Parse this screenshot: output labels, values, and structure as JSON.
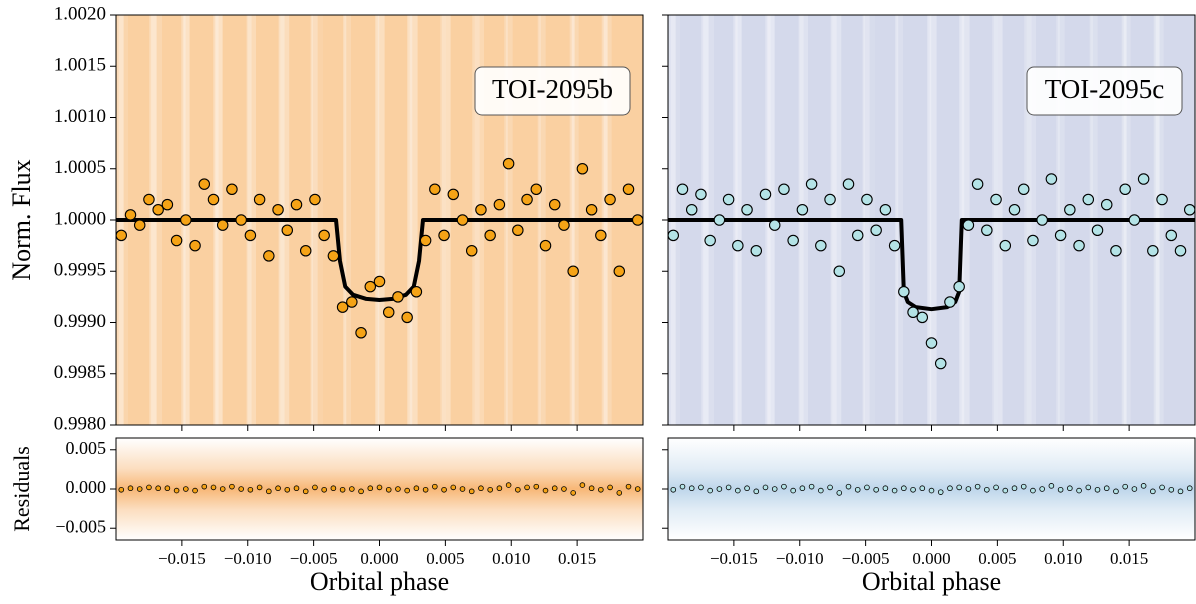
{
  "chart_data": [
    {
      "type": "scatter",
      "ylabel": "Norm. Flux",
      "annotation": "TOI-2095b",
      "band_color": "#f9c48a",
      "xlim": [
        -0.02,
        0.02
      ],
      "xticks": [
        -0.015,
        -0.01,
        -0.005,
        0,
        0.005,
        0.01,
        0.015
      ],
      "show_xtick_labels": false,
      "ylim": [
        0.998,
        1.002
      ],
      "yticks": [
        {
          "value": 0.998,
          "label": "0.9980"
        },
        {
          "value": 0.9985,
          "label": "0.9985"
        },
        {
          "value": 0.999,
          "label": "0.9990"
        },
        {
          "value": 0.9995,
          "label": "0.9995"
        },
        {
          "value": 1.0,
          "label": "1.0000"
        },
        {
          "value": 1.0005,
          "label": "1.0005"
        },
        {
          "value": 1.001,
          "label": "1.0010"
        },
        {
          "value": 1.0015,
          "label": "1.0015"
        },
        {
          "value": 1.002,
          "label": "1.0020"
        }
      ],
      "show_ytick_labels": true,
      "series": [
        {
          "style": "points",
          "color": "#f5a316",
          "x": [
            -0.0196,
            -0.0189,
            -0.0182,
            -0.0175,
            -0.0168,
            -0.0161,
            -0.0154,
            -0.0147,
            -0.014,
            -0.0133,
            -0.0126,
            -0.0119,
            -0.0112,
            -0.0105,
            -0.0098,
            -0.0091,
            -0.0084,
            -0.0077,
            -0.007,
            -0.0063,
            -0.0056,
            -0.0049,
            -0.0042,
            -0.0035,
            -0.0028,
            -0.0021,
            -0.0014,
            -0.0007,
            0,
            0.0007,
            0.0014,
            0.0021,
            0.0028,
            0.0035,
            0.0042,
            0.0049,
            0.0056,
            0.0063,
            0.007,
            0.0077,
            0.0084,
            0.0091,
            0.0098,
            0.0105,
            0.0112,
            0.0119,
            0.0126,
            0.0133,
            0.014,
            0.0147,
            0.0154,
            0.0161,
            0.0168,
            0.0175,
            0.0182,
            0.0189,
            0.0196
          ],
          "values": [
            0.99985,
            1.00005,
            0.99995,
            1.0002,
            1.0001,
            1.00015,
            0.9998,
            1.0,
            0.99975,
            1.00035,
            1.0002,
            0.99995,
            1.0003,
            1.0,
            0.99985,
            1.0002,
            0.99965,
            1.0001,
            0.9999,
            1.00015,
            0.9997,
            1.0002,
            0.99985,
            0.99965,
            0.99915,
            0.9992,
            0.9989,
            0.99935,
            0.9994,
            0.9991,
            0.99925,
            0.99905,
            0.9993,
            0.9998,
            1.0003,
            0.99985,
            1.00025,
            1.0,
            0.9997,
            1.0001,
            0.99985,
            1.00015,
            1.00055,
            0.9999,
            1.0002,
            1.0003,
            0.99975,
            1.00015,
            0.99995,
            0.9995,
            1.0005,
            1.0001,
            0.99985,
            1.0002,
            0.9995,
            1.0003,
            1.0
          ]
        },
        {
          "style": "line",
          "color": "#000000",
          "x": [
            -0.02,
            -0.0033,
            -0.003,
            -0.0026,
            -0.002,
            -0.001,
            0,
            0.001,
            0.002,
            0.0026,
            0.003,
            0.0033,
            0.02
          ],
          "values": [
            1.0,
            1.0,
            0.9996,
            0.99935,
            0.99927,
            0.99923,
            0.99922,
            0.99923,
            0.99927,
            0.99935,
            0.9996,
            1.0,
            1.0
          ]
        }
      ]
    },
    {
      "type": "scatter",
      "ylabel": "Residuals",
      "xlabel": "Orbital phase",
      "band_color": "#f5a04a",
      "xlim": [
        -0.02,
        0.02
      ],
      "xticks": [
        {
          "value": -0.015,
          "label": "−0.015"
        },
        {
          "value": -0.01,
          "label": "−0.010"
        },
        {
          "value": -0.005,
          "label": "−0.005"
        },
        {
          "value": 0,
          "label": "0.000"
        },
        0.005,
        {
          "value": 0.01,
          "label": "0.010"
        },
        0.015
      ],
      "show_xtick_labels": true,
      "ylim": [
        -0.0065,
        0.0065
      ],
      "yticks": [
        {
          "value": -0.005,
          "label": "−0.005"
        },
        {
          "value": 0,
          "label": "0.000"
        },
        0.005
      ],
      "show_ytick_labels": true,
      "series": [
        {
          "style": "points",
          "color": "#f5a316",
          "x": [
            -0.0196,
            -0.0189,
            -0.0182,
            -0.0175,
            -0.0168,
            -0.0161,
            -0.0154,
            -0.0147,
            -0.014,
            -0.0133,
            -0.0126,
            -0.0119,
            -0.0112,
            -0.0105,
            -0.0098,
            -0.0091,
            -0.0084,
            -0.0077,
            -0.007,
            -0.0063,
            -0.0056,
            -0.0049,
            -0.0042,
            -0.0035,
            -0.0028,
            -0.0021,
            -0.0014,
            -0.0007,
            0,
            0.0007,
            0.0014,
            0.0021,
            0.0028,
            0.0035,
            0.0042,
            0.0049,
            0.0056,
            0.0063,
            0.007,
            0.0077,
            0.0084,
            0.0091,
            0.0098,
            0.0105,
            0.0112,
            0.0119,
            0.0126,
            0.0133,
            0.014,
            0.0147,
            0.0154,
            0.0161,
            0.0168,
            0.0175,
            0.0182,
            0.0189,
            0.0196
          ],
          "values": [
            -0.0001,
            0.0001,
            0.0,
            0.0002,
            0.0001,
            0.0001,
            -0.0002,
            0.0,
            -0.0002,
            0.0003,
            0.0002,
            0.0,
            0.0003,
            0.0,
            -0.0001,
            0.0002,
            -0.0003,
            0.0001,
            -0.0001,
            0.0001,
            -0.0003,
            0.0002,
            -0.0001,
            0.0001,
            -0.0001,
            0.0,
            -0.0003,
            0.0001,
            0.0002,
            -0.0001,
            0.0,
            -0.0002,
            0.0001,
            -0.0001,
            0.0003,
            -0.0001,
            0.0002,
            0.0,
            -0.0003,
            0.0001,
            -0.0001,
            0.0001,
            0.0005,
            -0.0001,
            0.0002,
            0.0003,
            -0.0002,
            0.0001,
            0.0,
            -0.0005,
            0.0005,
            0.0001,
            -0.0001,
            0.0002,
            -0.0005,
            0.0003,
            0.0
          ]
        }
      ]
    },
    {
      "type": "scatter",
      "annotation": "TOI-2095c",
      "band_color": "#c9cfe6",
      "xlim": [
        -0.02,
        0.02
      ],
      "xticks": [
        -0.015,
        -0.01,
        -0.005,
        0,
        0.005,
        0.01,
        0.015
      ],
      "show_xtick_labels": false,
      "ylim": [
        0.998,
        1.002
      ],
      "yticks": [
        0.998,
        0.9985,
        0.999,
        0.9995,
        1.0,
        1.0005,
        1.001,
        1.0015,
        1.002
      ],
      "show_ytick_labels": false,
      "series": [
        {
          "style": "points",
          "color": "#b4e3e6",
          "x": [
            -0.0196,
            -0.0189,
            -0.0182,
            -0.0175,
            -0.0168,
            -0.0161,
            -0.0154,
            -0.0147,
            -0.014,
            -0.0133,
            -0.0126,
            -0.0119,
            -0.0112,
            -0.0105,
            -0.0098,
            -0.0091,
            -0.0084,
            -0.0077,
            -0.007,
            -0.0063,
            -0.0056,
            -0.0049,
            -0.0042,
            -0.0035,
            -0.0028,
            -0.0021,
            -0.0014,
            -0.0007,
            0,
            0.0007,
            0.0014,
            0.0021,
            0.0028,
            0.0035,
            0.0042,
            0.0049,
            0.0056,
            0.0063,
            0.007,
            0.0077,
            0.0084,
            0.0091,
            0.0098,
            0.0105,
            0.0112,
            0.0119,
            0.0126,
            0.0133,
            0.014,
            0.0147,
            0.0154,
            0.0161,
            0.0168,
            0.0175,
            0.0182,
            0.0189,
            0.0196
          ],
          "values": [
            0.99985,
            1.0003,
            1.0001,
            1.00025,
            0.9998,
            1.0,
            1.0002,
            0.99975,
            1.0001,
            0.9997,
            1.00025,
            0.99995,
            1.0003,
            0.9998,
            1.0001,
            1.00035,
            0.99975,
            1.0002,
            0.9995,
            1.00035,
            0.99985,
            1.0002,
            0.9999,
            1.0001,
            0.99975,
            0.9993,
            0.9991,
            0.99905,
            0.9988,
            0.9986,
            0.9992,
            0.99935,
            0.99995,
            1.00035,
            0.9999,
            1.0002,
            0.99975,
            1.0001,
            1.0003,
            0.9998,
            1.0,
            1.0004,
            0.99985,
            1.0001,
            0.99975,
            1.0002,
            0.9999,
            1.00015,
            0.9997,
            1.0003,
            1.0,
            1.0004,
            0.9997,
            1.0002,
            0.99985,
            0.9997,
            1.0001
          ]
        },
        {
          "style": "line",
          "color": "#000000",
          "x": [
            -0.02,
            -0.0023,
            -0.0021,
            -0.0018,
            -0.0012,
            0,
            0.0012,
            0.0018,
            0.0021,
            0.0023,
            0.02
          ],
          "values": [
            1.0,
            1.0,
            0.9993,
            0.9992,
            0.99915,
            0.99913,
            0.99915,
            0.9992,
            0.9993,
            1.0,
            1.0
          ]
        }
      ]
    },
    {
      "type": "scatter",
      "xlabel": "Orbital phase",
      "band_color": "#a9c9e4",
      "xlim": [
        -0.02,
        0.02
      ],
      "xticks": [
        {
          "value": -0.015,
          "label": "−0.015"
        },
        {
          "value": -0.01,
          "label": "−0.010"
        },
        {
          "value": -0.005,
          "label": "−0.005"
        },
        {
          "value": 0,
          "label": "0.000"
        },
        0.005,
        {
          "value": 0.01,
          "label": "0.010"
        },
        0.015
      ],
      "show_xtick_labels": true,
      "ylim": [
        -0.0065,
        0.0065
      ],
      "yticks": [
        -0.005,
        0,
        0.005
      ],
      "show_ytick_labels": false,
      "series": [
        {
          "style": "points",
          "color": "#b4e3e6",
          "x": [
            -0.0196,
            -0.0189,
            -0.0182,
            -0.0175,
            -0.0168,
            -0.0161,
            -0.0154,
            -0.0147,
            -0.014,
            -0.0133,
            -0.0126,
            -0.0119,
            -0.0112,
            -0.0105,
            -0.0098,
            -0.0091,
            -0.0084,
            -0.0077,
            -0.007,
            -0.0063,
            -0.0056,
            -0.0049,
            -0.0042,
            -0.0035,
            -0.0028,
            -0.0021,
            -0.0014,
            -0.0007,
            0,
            0.0007,
            0.0014,
            0.0021,
            0.0028,
            0.0035,
            0.0042,
            0.0049,
            0.0056,
            0.0063,
            0.007,
            0.0077,
            0.0084,
            0.0091,
            0.0098,
            0.0105,
            0.0112,
            0.0119,
            0.0126,
            0.0133,
            0.014,
            0.0147,
            0.0154,
            0.0161,
            0.0168,
            0.0175,
            0.0182,
            0.0189,
            0.0196
          ],
          "values": [
            -0.0001,
            0.0003,
            0.0001,
            0.0002,
            -0.0002,
            0.0,
            0.0002,
            -0.0002,
            0.0001,
            -0.0003,
            0.0002,
            0.0,
            0.0003,
            -0.0002,
            0.0001,
            0.0003,
            -0.0002,
            0.0002,
            -0.0005,
            0.0003,
            -0.0001,
            0.0002,
            -0.0001,
            0.0001,
            -0.0002,
            0.0001,
            -0.0001,
            0.0001,
            -0.0002,
            -0.0004,
            0.0001,
            0.0002,
            0.0,
            0.0003,
            -0.0001,
            0.0002,
            -0.0002,
            0.0001,
            0.0003,
            -0.0002,
            0.0,
            0.0004,
            -0.0001,
            0.0001,
            -0.0002,
            0.0002,
            -0.0001,
            0.0001,
            -0.0003,
            0.0003,
            0.0,
            0.0004,
            -0.0003,
            0.0002,
            -0.0001,
            -0.0003,
            0.0001
          ]
        }
      ]
    }
  ]
}
